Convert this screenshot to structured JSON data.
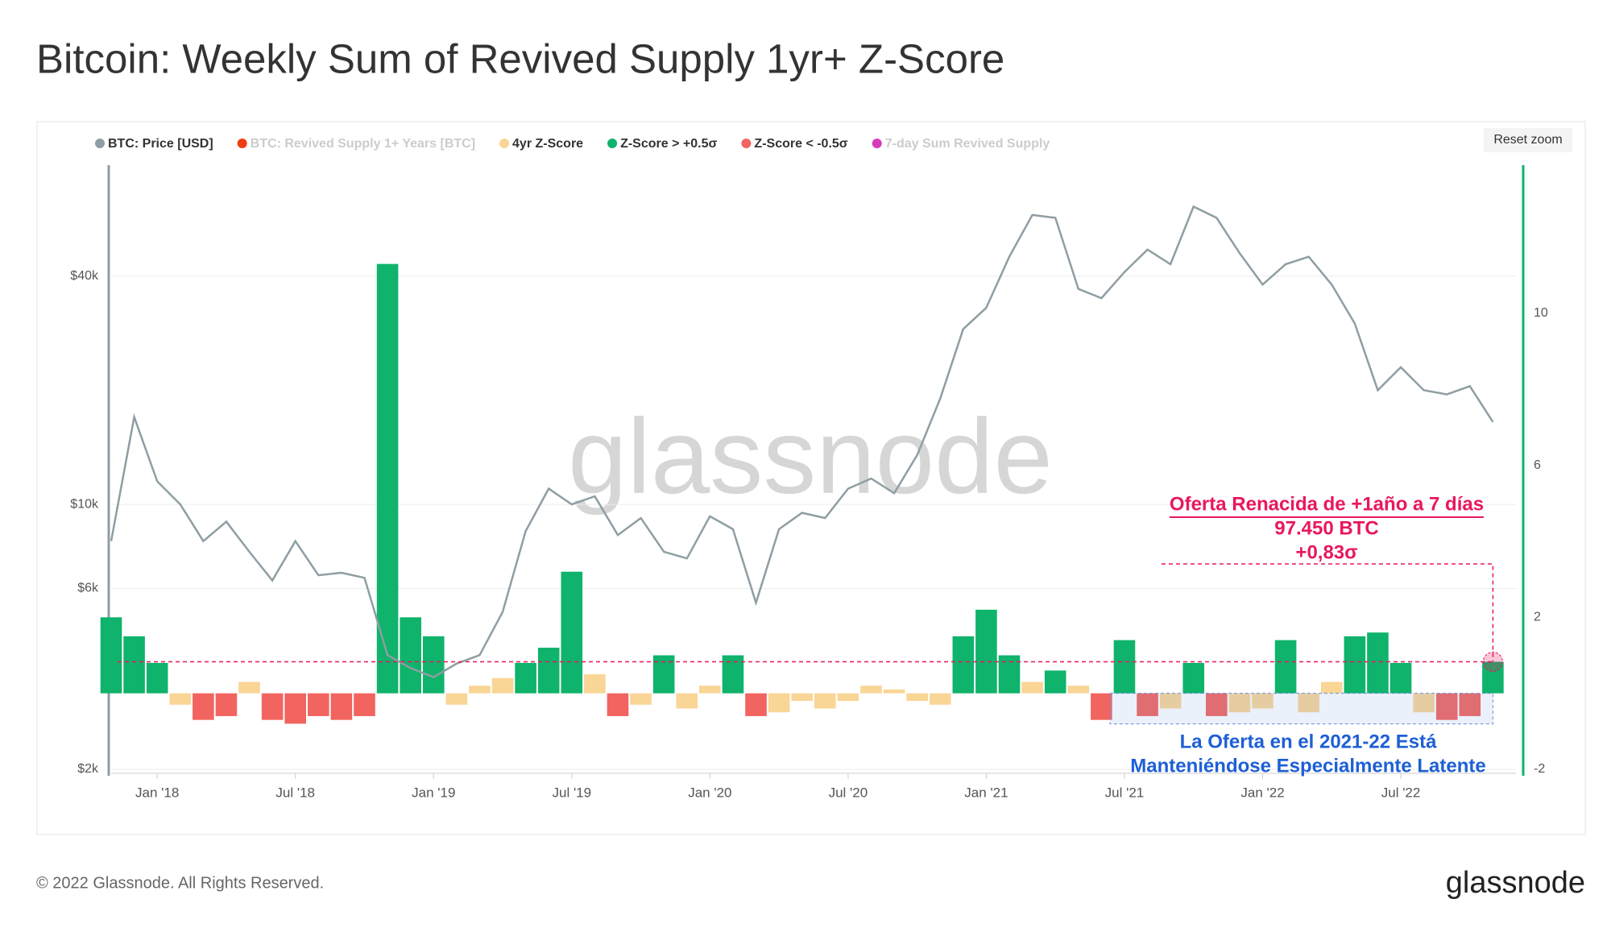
{
  "chart_data": {
    "type": "price-zscore",
    "title": "Bitcoin: Weekly Sum of Revived Supply 1yr+ Z-Score",
    "reset_button": "Reset zoom",
    "watermark": "glassnode",
    "footer": "© 2022 Glassnode. All Rights Reserved.",
    "logo": "glassnode",
    "x": [
      "2017-11",
      "2017-12",
      "2018-01",
      "2018-02",
      "2018-03",
      "2018-04",
      "2018-05",
      "2018-06",
      "2018-07",
      "2018-08",
      "2018-09",
      "2018-10",
      "2018-11",
      "2018-12",
      "2019-01",
      "2019-02",
      "2019-03",
      "2019-04",
      "2019-05",
      "2019-06",
      "2019-07",
      "2019-08",
      "2019-09",
      "2019-10",
      "2019-11",
      "2019-12",
      "2020-01",
      "2020-02",
      "2020-03",
      "2020-04",
      "2020-05",
      "2020-06",
      "2020-07",
      "2020-08",
      "2020-09",
      "2020-10",
      "2020-11",
      "2020-12",
      "2021-01",
      "2021-02",
      "2021-03",
      "2021-04",
      "2021-05",
      "2021-06",
      "2021-07",
      "2021-08",
      "2021-09",
      "2021-10",
      "2021-11",
      "2021-12",
      "2022-01",
      "2022-02",
      "2022-03",
      "2022-04",
      "2022-05",
      "2022-06",
      "2022-07",
      "2022-08",
      "2022-09",
      "2022-10",
      "2022-11"
    ],
    "xlim": [
      "2017-11",
      "2022-12"
    ],
    "xticks": [
      {
        "value": "2018-01",
        "label": "Jan '18"
      },
      {
        "value": "2018-07",
        "label": "Jul '18"
      },
      {
        "value": "2019-01",
        "label": "Jan '19"
      },
      {
        "value": "2019-07",
        "label": "Jul '19"
      },
      {
        "value": "2020-01",
        "label": "Jan '20"
      },
      {
        "value": "2020-07",
        "label": "Jul '20"
      },
      {
        "value": "2021-01",
        "label": "Jan '21"
      },
      {
        "value": "2021-07",
        "label": "Jul '21"
      },
      {
        "value": "2022-01",
        "label": "Jan '22"
      },
      {
        "value": "2022-07",
        "label": "Jul '22"
      }
    ],
    "ylim": [
      2000,
      78500
    ],
    "ylog": true,
    "yticks": [
      {
        "value": 2000,
        "label": "$2k"
      },
      {
        "value": 6000,
        "label": "$6k"
      },
      {
        "value": 10000,
        "label": "$10k"
      },
      {
        "value": 40000,
        "label": "$40k"
      }
    ],
    "y2lim": [
      -2,
      13.9
    ],
    "y2ticks": [
      -2,
      2,
      6,
      10
    ],
    "grid": true,
    "series": [
      {
        "name": "BTC: Price [USD]",
        "color": "#8e9ea3",
        "axis": "y",
        "values": [
          8000,
          17000,
          11500,
          10000,
          8000,
          9000,
          7500,
          6300,
          8000,
          6500,
          6600,
          6400,
          4000,
          3700,
          3500,
          3800,
          4000,
          5200,
          8500,
          11000,
          10000,
          10500,
          8300,
          9200,
          7500,
          7200,
          9300,
          8600,
          5500,
          8600,
          9500,
          9200,
          11000,
          11700,
          10700,
          13500,
          19000,
          29000,
          33000,
          45000,
          58000,
          57000,
          37000,
          35000,
          41000,
          47000,
          43000,
          61000,
          57000,
          46000,
          38000,
          43000,
          45000,
          38000,
          30000,
          20000,
          23000,
          20000,
          19500,
          20500,
          16500
        ]
      },
      {
        "name": "BTC: Revived Supply 1+ Years [BTC]",
        "color": "#f03c12",
        "hidden": true
      },
      {
        "name": "4yr Z-Score",
        "color": "#f9d596",
        "axis": "y2",
        "values": [
          2,
          1.5,
          0.8,
          -0.3,
          -0.7,
          -0.6,
          0.3,
          -0.7,
          -0.8,
          -0.6,
          -0.7,
          -0.6,
          11.3,
          2,
          1.5,
          -0.3,
          0.2,
          0.4,
          0.8,
          1.2,
          3.2,
          0.5,
          -0.6,
          -0.3,
          1.0,
          -0.4,
          0.2,
          1.0,
          -0.6,
          -0.5,
          -0.2,
          -0.4,
          -0.2,
          0.2,
          0.1,
          -0.2,
          -0.3,
          1.5,
          2.2,
          1.0,
          0.3,
          0.6,
          0.2,
          -0.7,
          1.4,
          -0.6,
          -0.4,
          0.8,
          -0.6,
          -0.5,
          -0.4,
          1.4,
          -0.5,
          0.3,
          1.5,
          1.6,
          0.8,
          -0.5,
          -0.7,
          -0.6,
          0.83
        ]
      },
      {
        "name": "Z-Score > +0.5σ",
        "color": "#0fb36b",
        "axis": "y2",
        "threshold": 0.5
      },
      {
        "name": "Z-Score < -0.5σ",
        "color": "#f2645f",
        "axis": "y2",
        "threshold": -0.5
      },
      {
        "name": "7-day Sum Revived Supply",
        "color": "#d63bbd",
        "hidden": true
      }
    ],
    "annotations": {
      "pink": [
        "Oferta Renacida de +1año a 7 días",
        "97.450 BTC",
        "+0,83σ"
      ],
      "blue": [
        "La Oferta en el 2021-22 Está",
        "Manteniéndose Especialmente Latente"
      ]
    }
  }
}
